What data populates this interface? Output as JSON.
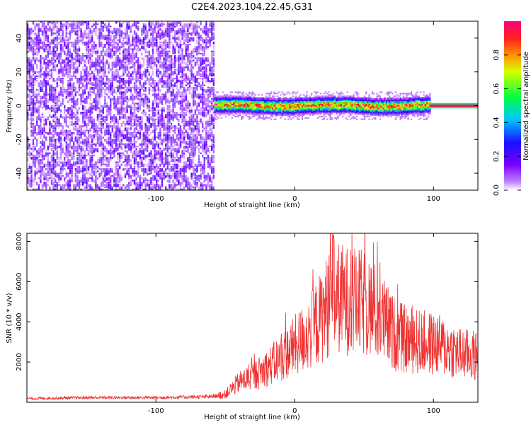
{
  "figure_title": "C2E4.2023.104.22.45.G31",
  "chart_data": [
    {
      "type": "heatmap",
      "title": "C2E4.2023.104.22.45.G31",
      "xlabel": "Height of straight line (km)",
      "ylabel": "Frequency (Hz)",
      "xlim": [
        -193,
        132
      ],
      "ylim": [
        -50,
        50
      ],
      "x_ticks": [
        -100,
        0,
        100
      ],
      "y_ticks": [
        -40,
        -20,
        0,
        20,
        40
      ],
      "colorbar": {
        "label": "Normalized spectral amplitude",
        "range": [
          0,
          1
        ],
        "ticks": [
          "0.0",
          "0.2",
          "0.4",
          "0.6",
          "0.8"
        ],
        "colors": [
          "#ffffff",
          "#7a00ff",
          "#2a00ff",
          "#00b4ff",
          "#00ff40",
          "#ffea00",
          "#ff6000",
          "#ff0060"
        ]
      },
      "regions": [
        {
          "name": "noise",
          "x_range": [
            -193,
            -58
          ],
          "freq_range": [
            -50,
            50
          ],
          "amplitude": 0.1
        },
        {
          "name": "signal",
          "x_range": [
            -58,
            97
          ],
          "freq_center": 0,
          "freq_halfwidth": 4,
          "amplitude_peak": 0.85
        },
        {
          "name": "model",
          "x_range": [
            97,
            132
          ],
          "freq_center": 0,
          "freq_halfwidth": 1,
          "amplitude": 0.95
        }
      ],
      "grid": false
    },
    {
      "type": "line",
      "xlabel": "Height of straight line (km)",
      "ylabel": "SNR (10 * v/v)",
      "xlim": [
        -193,
        132
      ],
      "ylim": [
        0,
        8400
      ],
      "x_ticks": [
        -100,
        0,
        100
      ],
      "y_ticks": [
        2000,
        4000,
        6000,
        8000
      ],
      "series_color": "#ee3333",
      "envelope": {
        "x": [
          -193,
          -150,
          -100,
          -60,
          -50,
          -45,
          -40,
          -30,
          -20,
          -10,
          0,
          10,
          20,
          25,
          30,
          40,
          50,
          60,
          70,
          80,
          90,
          100,
          110,
          120,
          132
        ],
        "y": [
          180,
          230,
          230,
          280,
          400,
          700,
          1000,
          1300,
          1700,
          2200,
          2800,
          3400,
          4300,
          5000,
          5200,
          5000,
          4900,
          4400,
          3500,
          3100,
          3000,
          2900,
          2700,
          2400,
          2300
        ]
      },
      "peak": {
        "x": 28,
        "y": 8300
      },
      "grid": false
    }
  ]
}
